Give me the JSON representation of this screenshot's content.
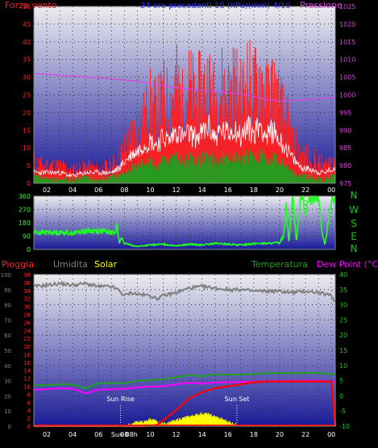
{
  "colors": {
    "wind": "#ff2020",
    "wind_avg": "#ff0000",
    "gust": "#ffffff",
    "windspeed": "#20a020",
    "pressure": "#e040e0",
    "direction": "#20ff20",
    "rain": "#ff0000",
    "humidity": "#808080",
    "solar": "#ffff00",
    "temperature": "#20a020",
    "dewpoint": "#ff00ff",
    "dewpoint_line": "#ff00ff",
    "blue_label": "#3030ff"
  },
  "chart_data": [
    {
      "type": "line",
      "panel": "wind",
      "legend": {
        "left": "Forza vento",
        "center": "24 ore precedenti   10 (hPa)(mm)  4/10",
        "right": "Pressione"
      },
      "x_ticks": [
        "02",
        "04",
        "06",
        "08",
        "10",
        "12",
        "14",
        "16",
        "18",
        "20",
        "22",
        "00"
      ],
      "y_left_ticks": [
        "0",
        "5",
        "10",
        "15",
        "20",
        "25",
        "30",
        "35",
        "40",
        "45",
        "50"
      ],
      "y_right_ticks": [
        "975",
        "980",
        "985",
        "990",
        "995",
        "1000",
        "1005",
        "1010",
        "1015",
        "1020",
        "1025"
      ],
      "ylim_left": [
        0,
        50
      ],
      "ylim_right": [
        975,
        1025
      ],
      "xlim": [
        1,
        24.3
      ],
      "series": [
        {
          "role": "pressure",
          "axis": "right",
          "x": [
            1,
            2,
            3,
            4,
            5,
            6,
            7,
            8,
            9,
            10,
            11,
            12,
            13,
            14,
            15,
            16,
            17,
            18,
            19,
            20,
            21,
            22,
            23,
            24,
            24.3
          ],
          "values": [
            1006,
            1005.8,
            1005.5,
            1005.3,
            1005,
            1004.8,
            1004.5,
            1004.2,
            1003.9,
            1003.2,
            1002.5,
            1002,
            1001.6,
            1001.2,
            1000.9,
            1000.6,
            1000.2,
            999.6,
            998.6,
            998.3,
            998.3,
            998.6,
            998.9,
            999.2,
            999.3
          ]
        },
        {
          "role": "gust",
          "axis": "left",
          "x": [
            1,
            2,
            3,
            4,
            5,
            6,
            7,
            7.5,
            8,
            8.5,
            9,
            9.5,
            10,
            10.5,
            11,
            11.5,
            12,
            12.5,
            13,
            13.5,
            14,
            14.5,
            15,
            15.5,
            16,
            16.5,
            17,
            17.5,
            18,
            18.5,
            19,
            19.5,
            20,
            20.5,
            21,
            21.5,
            22,
            22.5,
            23,
            23.5,
            24,
            24.3
          ],
          "values": [
            6,
            5,
            5,
            4,
            5,
            4,
            5,
            7,
            10,
            13,
            16,
            18,
            22,
            20,
            24,
            22,
            28,
            22,
            27,
            24,
            26,
            28,
            23,
            27,
            25,
            28,
            24,
            29,
            26,
            30,
            24,
            27,
            22,
            18,
            12,
            9,
            8,
            7,
            6,
            5,
            7,
            8
          ]
        },
        {
          "role": "windavg",
          "axis": "left",
          "x": [
            1,
            2,
            3,
            4,
            5,
            6,
            7,
            7.5,
            8,
            8.5,
            9,
            9.5,
            10,
            10.5,
            11,
            11.5,
            12,
            12.5,
            13,
            13.5,
            14,
            14.5,
            15,
            15.5,
            16,
            16.5,
            17,
            17.5,
            18,
            18.5,
            19,
            19.5,
            20,
            20.5,
            21,
            21.5,
            22,
            22.5,
            23,
            23.5,
            24,
            24.3
          ],
          "values": [
            3,
            3,
            3,
            2,
            3,
            3,
            3,
            4,
            6,
            8,
            9,
            11,
            12,
            11,
            13,
            12,
            15,
            13,
            14,
            13,
            14,
            16,
            13,
            15,
            14,
            16,
            13,
            16,
            14,
            17,
            13,
            15,
            12,
            10,
            7,
            5,
            4,
            4,
            3,
            3,
            4,
            4
          ]
        },
        {
          "role": "speed",
          "axis": "left",
          "x": [
            1,
            2,
            3,
            4,
            5,
            6,
            7,
            7.5,
            8,
            8.5,
            9,
            9.5,
            10,
            10.5,
            11,
            11.5,
            12,
            12.5,
            13,
            13.5,
            14,
            14.5,
            15,
            15.5,
            16,
            16.5,
            17,
            17.5,
            18,
            18.5,
            19,
            19.5,
            20,
            20.5,
            21,
            21.5,
            22,
            22.5,
            23,
            23.5,
            24,
            24.3
          ],
          "values": [
            2,
            1,
            1,
            1,
            2,
            1,
            2,
            2,
            3,
            4,
            5,
            6,
            6,
            5,
            7,
            6,
            8,
            6,
            7,
            6,
            7,
            8,
            6,
            7,
            7,
            8,
            6,
            8,
            7,
            8,
            6,
            7,
            6,
            5,
            3,
            2,
            2,
            2,
            1,
            1,
            2,
            2
          ]
        }
      ]
    },
    {
      "type": "line",
      "panel": "direction",
      "y_left_ticks": [
        "0",
        "90",
        "180",
        "270",
        "360"
      ],
      "right_labels": [
        "N",
        "W",
        "S",
        "E",
        "N"
      ],
      "ylim": [
        0,
        360
      ],
      "xlim": [
        1,
        24.3
      ],
      "series": [
        {
          "role": "direction",
          "x": [
            1,
            3,
            4,
            5,
            6,
            7,
            7.3,
            7.4,
            7.6,
            7.8,
            8,
            8.5,
            9,
            10,
            11,
            12,
            13,
            14,
            15,
            16,
            17,
            18,
            19,
            20,
            20.3,
            20.5,
            20.7,
            21,
            21.3,
            21.6,
            21.8,
            22,
            22.2,
            22.4,
            22.6,
            23,
            23.3,
            23.5,
            24,
            24.3
          ],
          "values": [
            115,
            115,
            110,
            125,
            125,
            115,
            110,
            200,
            40,
            80,
            40,
            30,
            20,
            30,
            35,
            25,
            35,
            30,
            40,
            35,
            30,
            40,
            40,
            45,
            90,
            330,
            40,
            350,
            60,
            340,
            350,
            200,
            360,
            350,
            340,
            350,
            100,
            30,
            340,
            340
          ]
        }
      ]
    },
    {
      "type": "line",
      "panel": "temperature",
      "legend": {
        "rain": "Pioggia",
        "humidity": "Umidita",
        "solar": "Solar",
        "temperature": "Temperatura",
        "dewpoint": "Dew Point (°C)"
      },
      "x_ticks": [
        "02",
        "04",
        "06",
        "08",
        "10",
        "12",
        "14",
        "16",
        "18",
        "20",
        "22",
        "00"
      ],
      "y_hum_ticks": [
        "0",
        "10",
        "20",
        "30",
        "40",
        "50",
        "60",
        "70",
        "80",
        "90",
        "100"
      ],
      "y_rain_ticks": [
        "0",
        "2",
        "4",
        "6",
        "8",
        "10",
        "12",
        "14",
        "16",
        "18",
        "20",
        "22",
        "24",
        "26",
        "28",
        "30",
        "32",
        "34",
        "36",
        "38"
      ],
      "y_temp_ticks": [
        "-10",
        "-5",
        "0",
        "5",
        "10",
        "15",
        "20",
        "25",
        "30",
        "35",
        "40"
      ],
      "ylim_hum": [
        0,
        100
      ],
      "ylim_rain": [
        0,
        38
      ],
      "ylim_temp": [
        -10,
        40
      ],
      "xlim": [
        1,
        24.3
      ],
      "annotations": [
        {
          "text": "Sun Rise",
          "x": 7.7
        },
        {
          "text": "Sun Set",
          "x": 16.7
        },
        {
          "text": "Sun 08h",
          "x": 8
        }
      ],
      "series": [
        {
          "role": "humidity",
          "axis": "hum",
          "x": [
            1,
            2,
            3,
            4,
            5,
            6,
            7,
            7.5,
            8,
            8.5,
            9,
            10,
            10.5,
            11,
            12,
            13,
            14,
            15,
            16,
            17,
            18,
            19,
            20,
            21,
            22,
            23,
            24,
            24.3
          ],
          "values": [
            92,
            93,
            94,
            93,
            94,
            92,
            92,
            90,
            86,
            88,
            87,
            86,
            84,
            86,
            88,
            91,
            92,
            91,
            90,
            90,
            89,
            89,
            89,
            88,
            89,
            88,
            86,
            82
          ]
        },
        {
          "role": "temperature",
          "axis": "temp",
          "x": [
            1,
            2,
            3,
            4,
            5,
            6,
            7,
            8,
            9,
            10,
            11,
            12,
            13,
            14,
            15,
            16,
            17,
            18,
            19,
            20,
            21,
            22,
            23,
            24,
            24.3
          ],
          "values": [
            3.5,
            3.5,
            3.8,
            3.8,
            2.5,
            4.2,
            4.2,
            4.2,
            5.0,
            5.2,
            5.5,
            6.2,
            6.8,
            6.5,
            7.0,
            7.0,
            7.0,
            7.2,
            7.5,
            7.5,
            7.4,
            7.6,
            7.5,
            7.2,
            7.0
          ]
        },
        {
          "role": "dewpoint",
          "axis": "temp",
          "x": [
            1,
            2,
            3,
            4,
            5,
            6,
            7,
            8,
            9,
            10,
            11,
            12,
            13,
            14,
            15,
            16,
            17,
            18,
            19,
            20,
            21,
            22,
            23,
            24,
            24.3
          ],
          "values": [
            2.0,
            2.2,
            2.5,
            2.4,
            0.8,
            2.0,
            2.2,
            2.3,
            2.8,
            3.0,
            3.2,
            3.8,
            4.3,
            4.1,
            4.3,
            4.5,
            4.6,
            4.7,
            4.8,
            4.9,
            4.9,
            5.0,
            5.0,
            4.8,
            4.6
          ]
        },
        {
          "role": "rain",
          "axis": "rain",
          "x": [
            1,
            9,
            10,
            10.5,
            11,
            12,
            12.5,
            13,
            14,
            15,
            16,
            17,
            18,
            19,
            20,
            21,
            22,
            23,
            24,
            24.3
          ],
          "values": [
            0,
            0,
            0.1,
            0.3,
            1.5,
            4,
            5.5,
            7,
            8.5,
            9.5,
            10,
            10.5,
            11,
            11.2,
            11.2,
            11.2,
            11.2,
            11.2,
            11.2,
            0
          ]
        },
        {
          "role": "solar",
          "axis": "rain",
          "x": [
            1,
            8,
            8.5,
            9,
            9.5,
            10,
            10.5,
            11,
            11.5,
            12,
            12.5,
            13,
            13.5,
            14,
            14.5,
            15,
            15.5,
            16,
            16.5,
            17,
            24.3
          ],
          "values": [
            0,
            0,
            0.5,
            1.2,
            1.0,
            1.8,
            1.2,
            0.6,
            1.0,
            1.5,
            2.0,
            2.4,
            2.8,
            3.2,
            3.0,
            2.4,
            1.8,
            1.2,
            0.6,
            0,
            0
          ]
        }
      ]
    }
  ]
}
